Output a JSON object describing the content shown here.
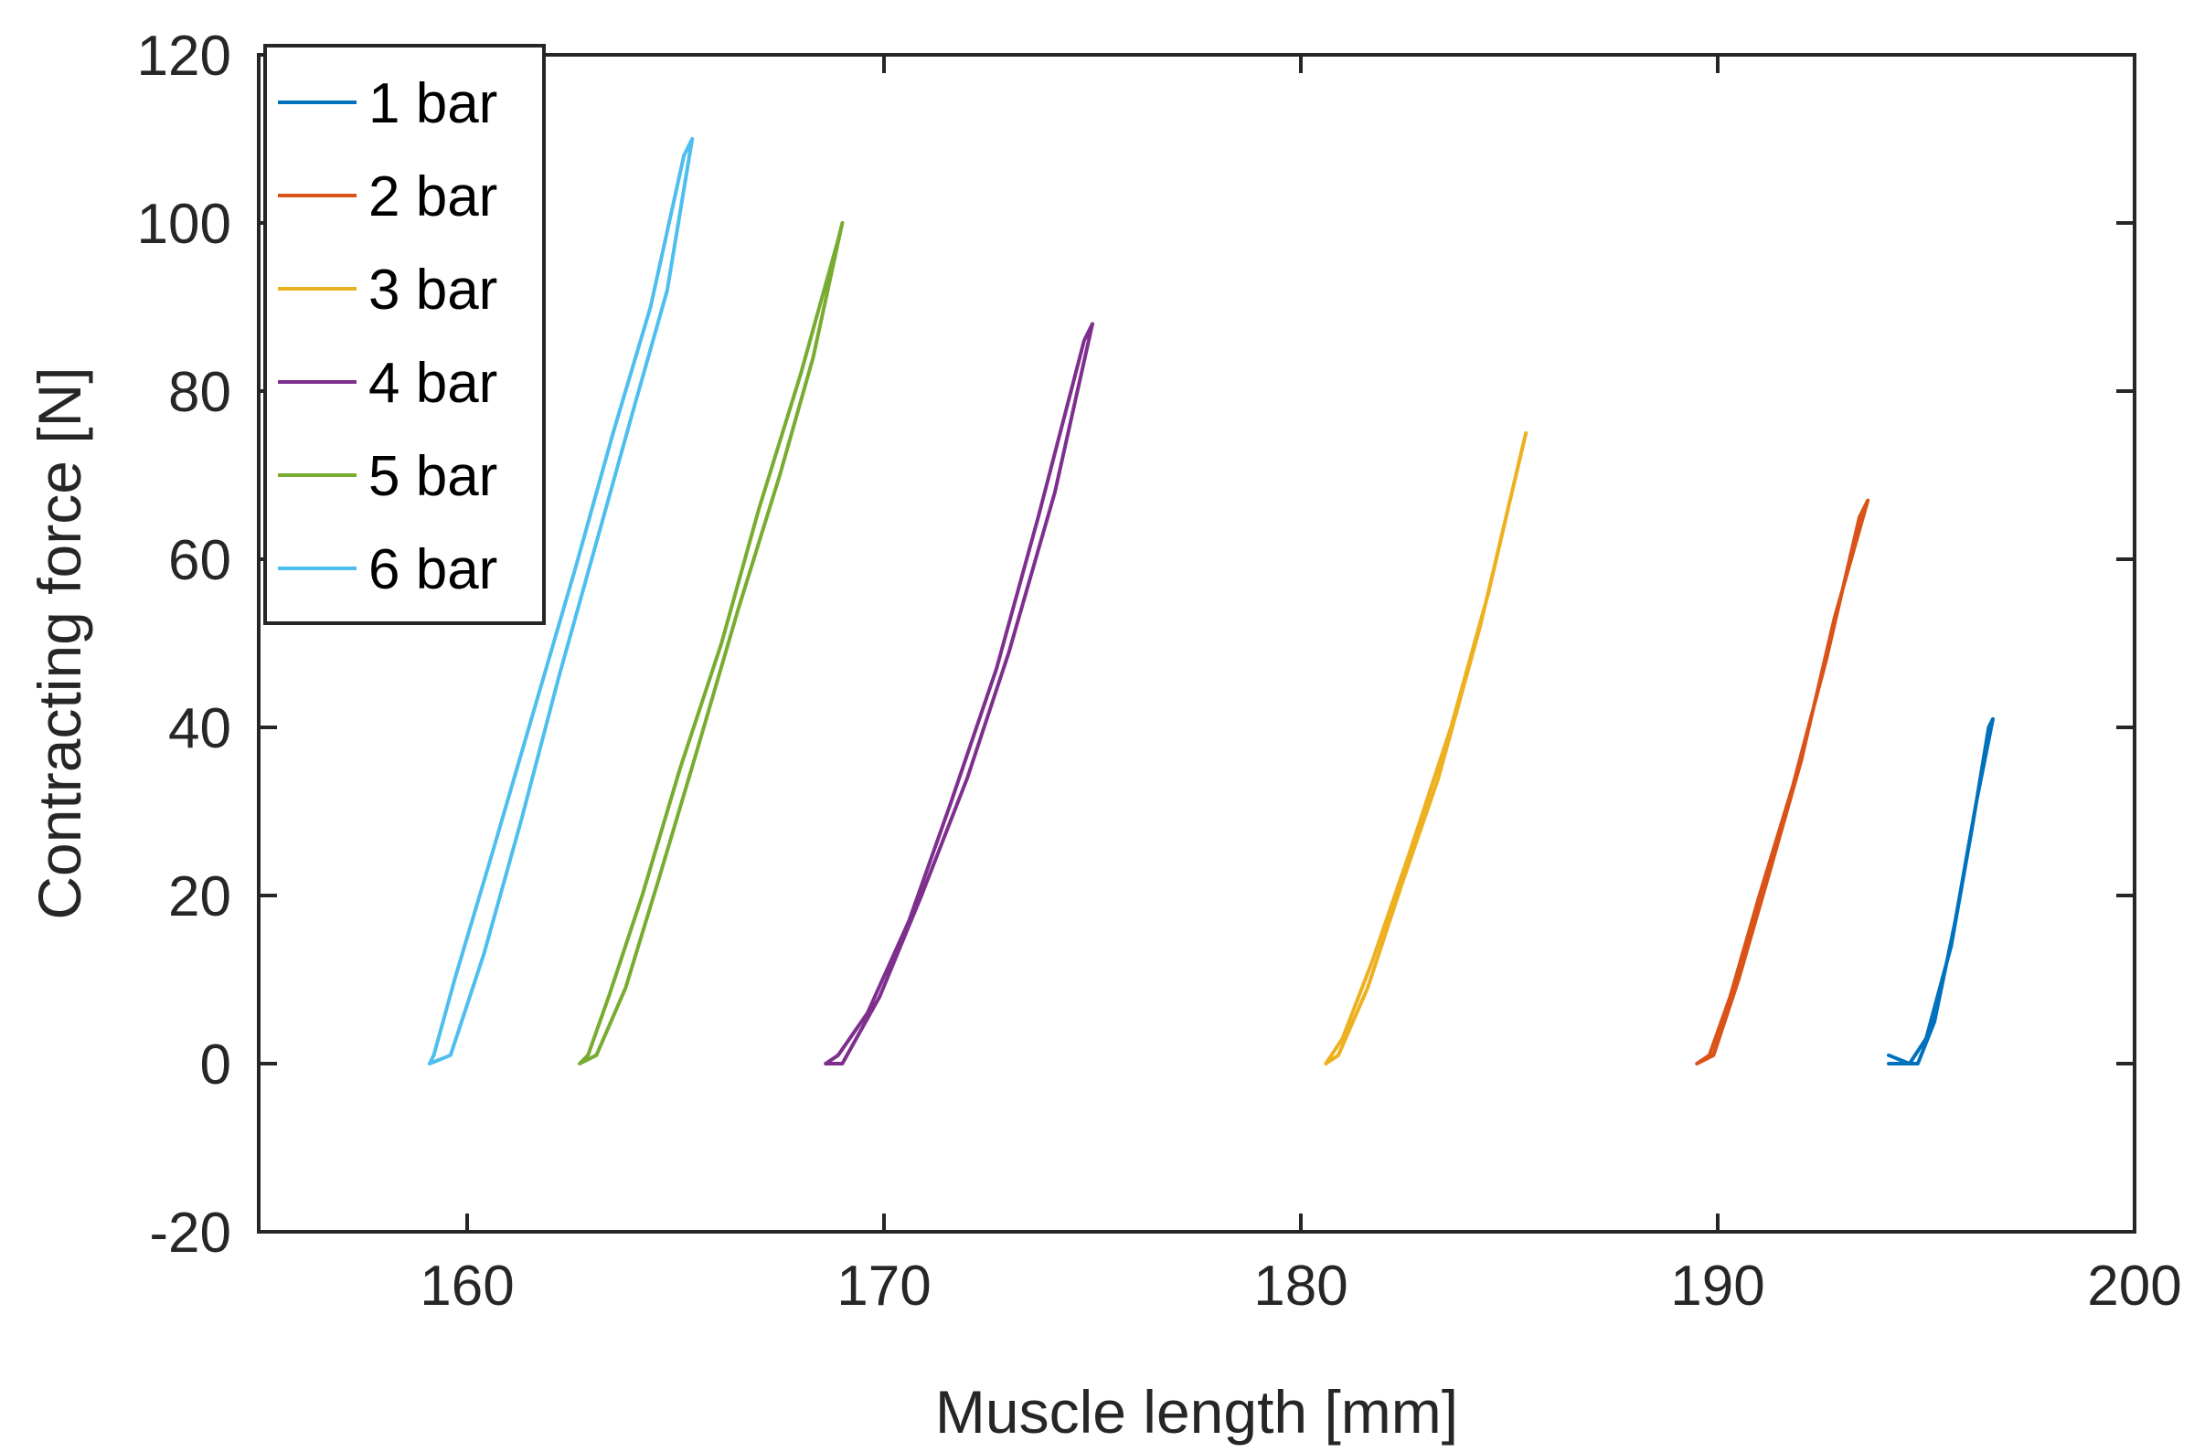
{
  "chart_data": {
    "type": "line",
    "title": "",
    "xlabel": "Muscle length [mm]",
    "ylabel": "Contracting force [N]",
    "xlim": [
      155,
      200
    ],
    "ylim": [
      -20,
      120
    ],
    "xticks": [
      160,
      170,
      180,
      190,
      200
    ],
    "yticks": [
      -20,
      0,
      20,
      40,
      60,
      80,
      100,
      120
    ],
    "grid": false,
    "legend_position": "top-left",
    "series": [
      {
        "name": "1 bar",
        "color": "#0072BD",
        "x": [
          194.1,
          194.8,
          195.2,
          195.7,
          196.2,
          196.6,
          196.5,
          196.1,
          195.6,
          195.0,
          194.6,
          194.1
        ],
        "y": [
          0,
          0,
          5,
          17,
          31,
          41,
          40,
          28,
          14,
          3,
          0,
          1
        ]
      },
      {
        "name": "2 bar",
        "color": "#D95319",
        "x": [
          189.5,
          189.9,
          190.5,
          191.2,
          192.0,
          192.8,
          193.6,
          193.4,
          192.6,
          191.8,
          191.0,
          190.3,
          189.8,
          189.5
        ],
        "y": [
          0,
          1,
          10,
          22,
          36,
          53,
          67,
          65,
          48,
          33,
          20,
          8,
          1,
          0
        ]
      },
      {
        "name": "3 bar",
        "color": "#EDB120",
        "x": [
          180.6,
          180.9,
          181.6,
          182.4,
          183.3,
          184.3,
          185.4,
          185.3,
          184.5,
          183.6,
          182.6,
          181.7,
          181.0,
          180.6
        ],
        "y": [
          0,
          1,
          9,
          21,
          34,
          52,
          75,
          73,
          56,
          40,
          25,
          12,
          3,
          0
        ]
      },
      {
        "name": "4 bar",
        "color": "#7E2F8E",
        "x": [
          168.6,
          169.0,
          169.9,
          170.9,
          172.0,
          173.0,
          174.1,
          175.0,
          174.8,
          173.7,
          172.7,
          171.6,
          170.6,
          169.6,
          168.9,
          168.6
        ],
        "y": [
          0,
          0,
          8,
          20,
          34,
          49,
          68,
          88,
          86,
          65,
          47,
          31,
          17,
          6,
          1,
          0
        ]
      },
      {
        "name": "5 bar",
        "color": "#77AC30",
        "x": [
          162.7,
          163.1,
          163.8,
          164.6,
          165.5,
          166.5,
          167.5,
          168.3,
          169.0,
          168.9,
          168.0,
          167.0,
          166.1,
          165.1,
          164.2,
          163.4,
          162.9,
          162.7
        ],
        "y": [
          0,
          1,
          9,
          22,
          37,
          54,
          70,
          84,
          100,
          98,
          82,
          66,
          50,
          35,
          20,
          8,
          1,
          0
        ]
      },
      {
        "name": "6 bar",
        "color": "#4DBEEE",
        "x": [
          159.1,
          159.6,
          160.4,
          161.3,
          162.2,
          163.1,
          164.0,
          164.8,
          165.4,
          165.2,
          164.4,
          163.5,
          162.6,
          161.6,
          160.6,
          159.7,
          159.2,
          159.1
        ],
        "y": [
          0,
          1,
          13,
          29,
          46,
          62,
          78,
          92,
          110,
          108,
          90,
          75,
          59,
          42,
          25,
          10,
          1,
          0
        ]
      }
    ]
  }
}
